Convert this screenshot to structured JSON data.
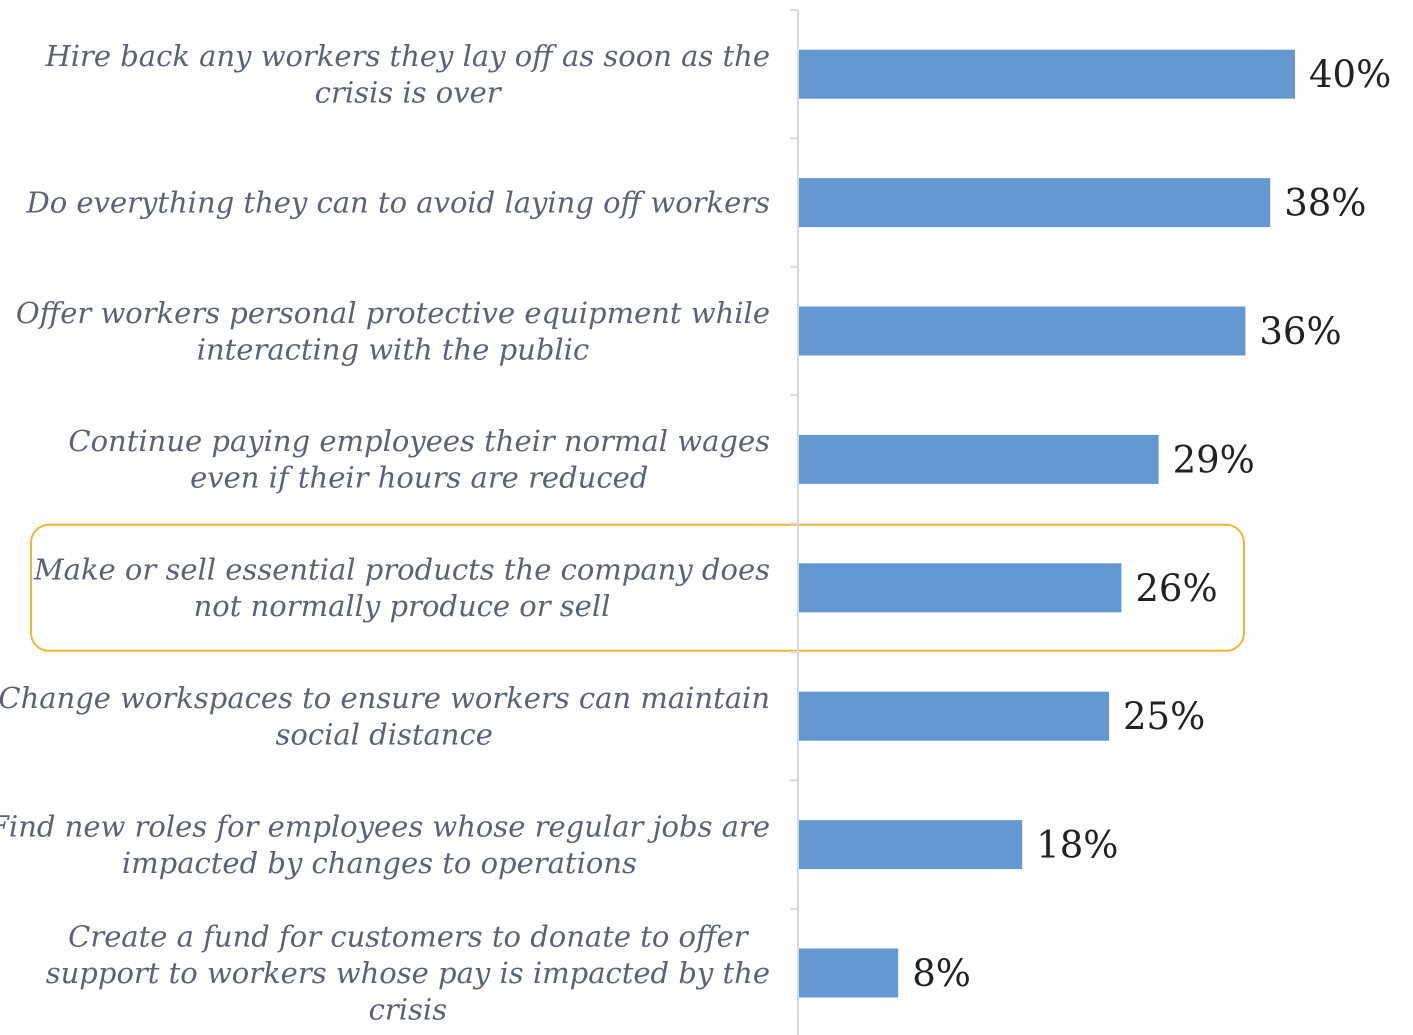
{
  "chart_data": {
    "type": "bar",
    "orientation": "horizontal",
    "categories": [
      "Hire back any workers they lay off as soon as the crisis is over",
      "Do everything they can to avoid laying off workers",
      "Offer workers personal protective equipment while interacting with the public",
      "Continue paying employees their normal wages even if their hours are reduced",
      "Make or sell essential products the company does not normally produce or sell",
      "Change workspaces to ensure workers can maintain social distance",
      "Find new roles for employees whose regular jobs are impacted by changes to operations",
      "Create a fund for customers to donate to offer support to workers whose pay is impacted by the crisis"
    ],
    "label_lines": [
      [
        "Hire back any workers they lay off as soon as the",
        "crisis is over"
      ],
      [
        "Do everything they can to avoid laying off workers"
      ],
      [
        "Offer workers personal protective equipment while",
        "interacting with the public"
      ],
      [
        "Continue paying employees their normal wages",
        "even if their hours are reduced"
      ],
      [
        "Make or sell essential products the company does",
        "not normally produce or sell"
      ],
      [
        "Change workspaces to ensure workers can maintain",
        "social distance"
      ],
      [
        "Find new roles for employees whose regular jobs are",
        "impacted by changes to operations"
      ],
      [
        "Create a fund for customers to donate to offer",
        "support to workers whose pay is impacted by the",
        "crisis"
      ]
    ],
    "values": [
      40,
      38,
      36,
      29,
      26,
      25,
      18,
      8
    ],
    "value_labels": [
      "40%",
      "38%",
      "36%",
      "29%",
      "26%",
      "25%",
      "18%",
      "8%"
    ],
    "unit": "%",
    "highlighted_category_index": 4,
    "xlim": [
      0,
      40
    ],
    "grid": false,
    "colors": {
      "bar": "#6498d2",
      "highlight_border": "#f2b630",
      "axis": "#d9d9d9",
      "category_text": "#5b6272",
      "value_text": "#222222"
    }
  }
}
